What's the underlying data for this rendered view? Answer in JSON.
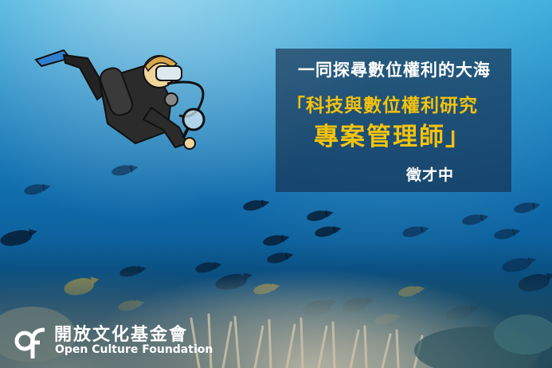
{
  "headline": {
    "line1": "一同探尋數位權利的大海",
    "line2": "「科技與數位權利研究",
    "line3": "專案管理師」",
    "line4": "徵才中"
  },
  "logo": {
    "name_zh": "開放文化基金會",
    "name_en": "Open Culture Foundation"
  },
  "colors": {
    "accent_yellow": "#f4c20d",
    "text_white": "#ffffff",
    "panel_bg": "#142846"
  }
}
